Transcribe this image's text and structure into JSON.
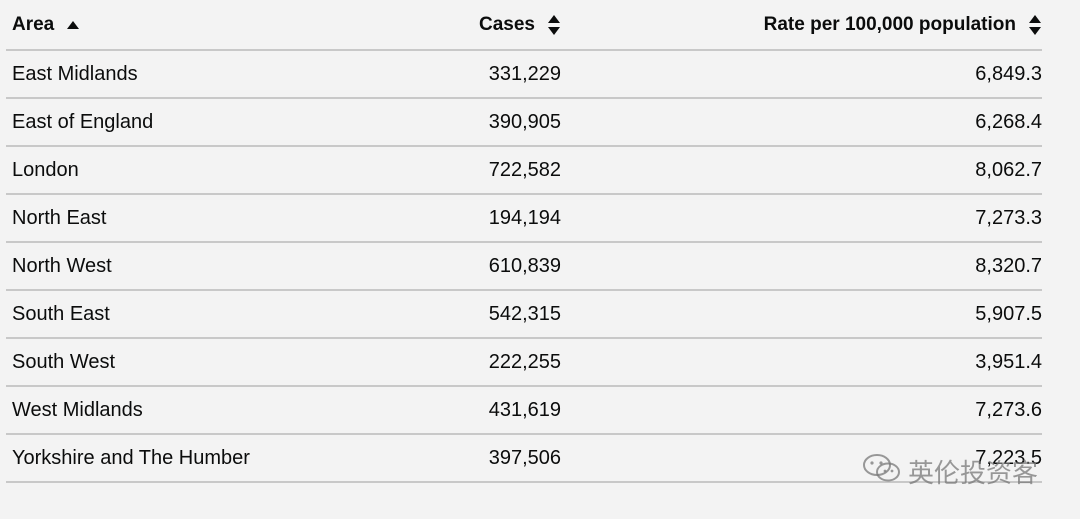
{
  "table": {
    "headers": {
      "area": "Area",
      "cases": "Cases",
      "rate": "Rate per 100,000 population"
    },
    "sort": {
      "area_icon": "sort-ascending-icon",
      "cases_icon": "sort-both-icon",
      "rate_icon": "sort-both-icon"
    },
    "rows": [
      {
        "area": "East Midlands",
        "cases": "331,229",
        "rate": "6,849.3"
      },
      {
        "area": "East of England",
        "cases": "390,905",
        "rate": "6,268.4"
      },
      {
        "area": "London",
        "cases": "722,582",
        "rate": "8,062.7"
      },
      {
        "area": "North East",
        "cases": "194,194",
        "rate": "7,273.3"
      },
      {
        "area": "North West",
        "cases": "610,839",
        "rate": "8,320.7"
      },
      {
        "area": "South East",
        "cases": "542,315",
        "rate": "5,907.5"
      },
      {
        "area": "South West",
        "cases": "222,255",
        "rate": "3,951.4"
      },
      {
        "area": "West Midlands",
        "cases": "431,619",
        "rate": "7,273.6"
      },
      {
        "area": "Yorkshire and The Humber",
        "cases": "397,506",
        "rate": "7,223.5"
      }
    ]
  },
  "watermark": {
    "icon": "wechat-icon",
    "text": "英伦投资客"
  },
  "colors": {
    "background": "#f3f3f3",
    "text": "#0b0c0c",
    "rule": "#c8c8c8"
  }
}
